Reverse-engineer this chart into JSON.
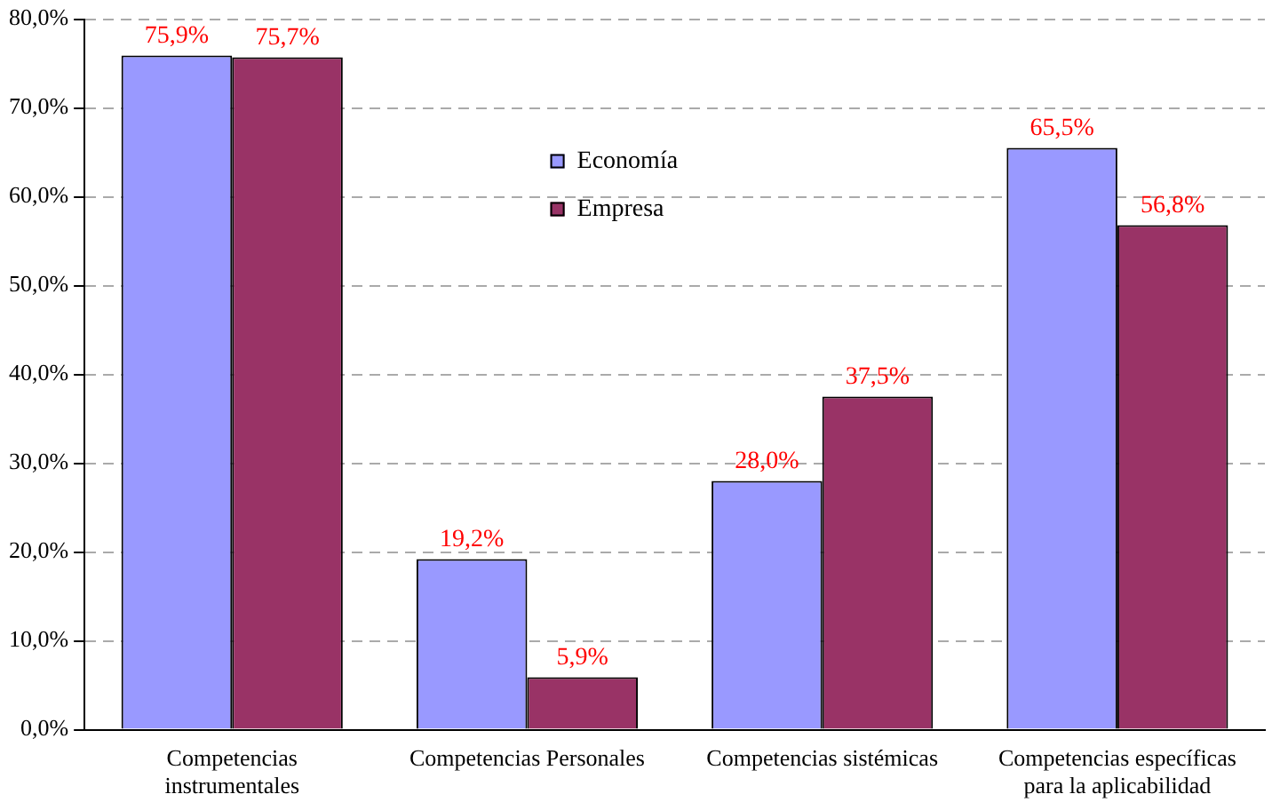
{
  "chart_data": {
    "type": "bar",
    "categories": [
      "Competencias instrumentales",
      "Competencias Personales",
      "Competencias sistémicas",
      "Competencias específicas para la aplicabilidad"
    ],
    "series": [
      {
        "name": "Economía",
        "color": "#9999ff",
        "values": [
          75.9,
          19.2,
          28.0,
          65.5
        ],
        "value_labels": [
          "75,9%",
          "19,2%",
          "28,0%",
          "65,5%"
        ]
      },
      {
        "name": "Empresa",
        "color": "#993366",
        "values": [
          75.7,
          5.9,
          37.5,
          56.8
        ],
        "value_labels": [
          "75,7%",
          "5,9%",
          "37,5%",
          "56,8%"
        ]
      }
    ],
    "ylim": [
      0,
      80
    ],
    "yticks": [
      {
        "value": 0,
        "label": "0,0%"
      },
      {
        "value": 10,
        "label": "10,0%"
      },
      {
        "value": 20,
        "label": "20,0%"
      },
      {
        "value": 30,
        "label": "30,0%"
      },
      {
        "value": 40,
        "label": "40,0%"
      },
      {
        "value": 50,
        "label": "50,0%"
      },
      {
        "value": 60,
        "label": "60,0%"
      },
      {
        "value": 70,
        "label": "70,0%"
      },
      {
        "value": 80,
        "label": "80,0%"
      }
    ],
    "grid": "y",
    "legend": "top"
  }
}
